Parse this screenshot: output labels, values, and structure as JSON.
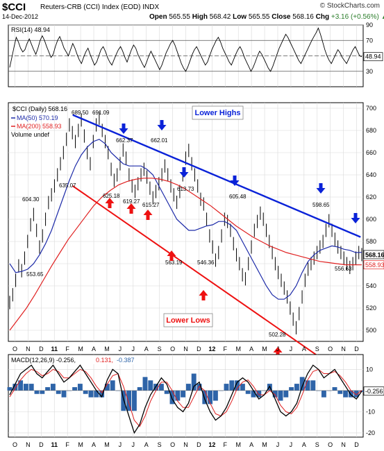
{
  "header": {
    "symbol": "$CCI",
    "name": "Reuters-CRB (CCI) Index (EOD)  INDX",
    "date": "14-Dec-2012",
    "brand": "© StockCharts.com",
    "open_label": "Open",
    "open": "565.55",
    "high_label": "High",
    "high": "568.42",
    "low_label": "Low",
    "low": "565.55",
    "close_label": "Close",
    "close": "568.16",
    "chg_label": "Chg",
    "chg": "+3.16 (+0.56%)",
    "chg_arrow": "▲"
  },
  "colors": {
    "price": "#000000",
    "ma50": "#1c2aa8",
    "ma200": "#e02020",
    "trend_upper": "#0a22d8",
    "trend_lower": "#ee1111",
    "arrow_up": "#ee1111",
    "arrow_down": "#0a22d8",
    "macd_line": "#000000",
    "signal_line": "#e02020",
    "histogram": "#2e64a8",
    "grid": "#d8d8d8"
  },
  "chart_data": [
    {
      "type": "line",
      "title": "RSI(14) 48.94",
      "legend": "RSI(14) 48.94",
      "ylim": [
        10,
        90
      ],
      "y_ticks": [
        30,
        50,
        70,
        90
      ],
      "reference_lines": [
        30,
        50,
        70
      ],
      "last_value": 48.94,
      "series": [
        {
          "values": [
            35,
            48,
            62,
            74,
            68,
            60,
            55,
            58,
            66,
            72,
            65,
            58,
            52,
            60,
            70,
            76,
            70,
            62,
            55,
            48,
            52,
            62,
            70,
            75,
            68,
            60,
            55,
            50,
            58,
            66,
            60,
            52,
            45,
            40,
            48,
            55,
            60,
            52,
            45,
            38,
            42,
            50,
            58,
            62,
            56,
            48,
            42,
            38,
            45,
            52,
            58,
            62,
            56,
            48,
            42,
            50,
            58,
            64,
            60,
            52,
            46,
            40,
            35,
            42,
            50,
            56,
            50,
            44,
            38,
            32,
            38,
            46,
            54,
            60,
            66,
            70,
            64,
            56,
            48,
            40,
            34,
            30,
            36,
            44,
            52,
            58,
            62,
            56,
            50,
            44,
            38,
            42,
            50,
            58,
            64,
            70,
            74,
            68,
            60,
            54,
            48,
            42,
            38,
            45,
            52,
            58,
            62,
            56,
            48,
            42,
            36,
            30,
            35,
            42,
            50,
            56,
            52,
            46,
            40,
            34,
            30,
            36,
            44,
            52,
            60,
            66,
            72,
            78,
            74,
            68,
            62,
            56,
            50,
            44,
            40,
            46,
            52,
            58,
            64,
            70,
            75,
            80,
            86,
            78,
            68,
            58,
            50,
            44,
            40,
            46,
            52,
            58,
            54,
            48,
            44,
            40,
            46,
            52,
            58,
            62,
            56,
            50,
            48.94
          ]
        }
      ]
    },
    {
      "type": "line",
      "title": "$CCI (Daily) 568.16",
      "legend": [
        "$CCI (Daily) 568.16",
        "MA(50) 570.19",
        "MA(200) 558.93",
        "Volume undef"
      ],
      "x_tick_labels": [
        "O",
        "N",
        "D",
        "11",
        "F",
        "M",
        "A",
        "M",
        "J",
        "J",
        "A",
        "S",
        "O",
        "N",
        "D",
        "12",
        "F",
        "M",
        "A",
        "M",
        "J",
        "J",
        "A",
        "S",
        "O",
        "N",
        "D"
      ],
      "ylim": [
        490,
        705
      ],
      "y_ticks": [
        500,
        520,
        540,
        560,
        580,
        600,
        620,
        640,
        660,
        680,
        700
      ],
      "series": [
        {
          "name": "$CCI (Daily)",
          "values": [
            525,
            532,
            545,
            558,
            553.65,
            565,
            580,
            595,
            604.3,
            590,
            575,
            585,
            600,
            615,
            622,
            630,
            640,
            650,
            660,
            672,
            685,
            678,
            670,
            680,
            689.5,
            675,
            660,
            650,
            670,
            685,
            691.09,
            680,
            670,
            660,
            645,
            635.07,
            640,
            650,
            662.37,
            655,
            640,
            630,
            625.18,
            632,
            640,
            645,
            638,
            628,
            619.27,
            625,
            632,
            640,
            648,
            640,
            630,
            622,
            615.27,
            625,
            640,
            655,
            662.01,
            650,
            640,
            630,
            618,
            613.73,
            600,
            585,
            575,
            563.19,
            570,
            585,
            600,
            598,
            590,
            578,
            568,
            560,
            550,
            546.36,
            560,
            575,
            590,
            598,
            605.48,
            600,
            590,
            580,
            570,
            560,
            552,
            545,
            538,
            530,
            520,
            510,
            502.28,
            515,
            530,
            545,
            555,
            560,
            565,
            570,
            575,
            580,
            590,
            598.65,
            590,
            582,
            575,
            570,
            565,
            560,
            556.63,
            560,
            565,
            570,
            568.16
          ]
        },
        {
          "name": "MA(50)",
          "values": [
            560,
            552,
            553,
            555,
            560,
            568,
            578,
            590,
            605,
            620,
            635,
            648,
            658,
            665,
            670,
            672,
            668,
            660,
            655,
            650,
            648,
            648,
            648,
            645,
            640,
            630,
            620,
            610,
            600,
            595,
            590,
            590,
            592,
            594,
            595,
            598,
            598,
            595,
            590,
            580,
            570,
            560,
            550,
            540,
            532,
            528,
            528,
            532,
            540,
            552,
            562,
            568,
            572,
            574,
            576,
            575,
            573,
            572,
            570,
            570.19
          ]
        },
        {
          "name": "MA(200)",
          "values": [
            500,
            510,
            520,
            532,
            545,
            558,
            570,
            582,
            592,
            602,
            612,
            620,
            626,
            631,
            634,
            636,
            637,
            637,
            636,
            634,
            631,
            627,
            622,
            617,
            612,
            606,
            600,
            594,
            589,
            584,
            580,
            576,
            573,
            570,
            568,
            566,
            564,
            562,
            561,
            560,
            559,
            559,
            558.93
          ]
        }
      ],
      "annotations": [
        {
          "text": "Lower Highs"
        },
        {
          "text": "Lower Lows"
        },
        {
          "text": "691.09"
        },
        {
          "text": "689.50"
        },
        {
          "text": "662.37"
        },
        {
          "text": "662.01"
        },
        {
          "text": "635.07"
        },
        {
          "text": "625.18"
        },
        {
          "text": "619.27"
        },
        {
          "text": "615.27"
        },
        {
          "text": "613.73"
        },
        {
          "text": "605.48"
        },
        {
          "text": "604.30"
        },
        {
          "text": "598.65"
        },
        {
          "text": "563.19"
        },
        {
          "text": "556.63"
        },
        {
          "text": "553.65"
        },
        {
          "text": "546.36"
        },
        {
          "text": "502.28"
        }
      ],
      "trend_lines": [
        {
          "name": "Lower Highs",
          "from": [
            4.9,
            694
          ],
          "to": [
            26.8,
            584
          ]
        },
        {
          "name": "Lower Lows",
          "from": [
            4.9,
            630
          ],
          "to": [
            26.8,
            470
          ]
        }
      ],
      "last_close_label": "568.16",
      "last_ma200_label": "558.93"
    },
    {
      "type": "line",
      "title": "MACD(12,26,9) -0.256, 0.131, -0.387",
      "legend": [
        "MACD(12,26,9) -0.256,",
        "0.131,",
        "-0.387"
      ],
      "ylim": [
        -22,
        17
      ],
      "y_ticks": [
        -20,
        -10,
        0,
        10
      ],
      "x_tick_labels": [
        "O",
        "N",
        "D",
        "11",
        "F",
        "M",
        "A",
        "M",
        "J",
        "J",
        "A",
        "S",
        "O",
        "N",
        "D",
        "12",
        "F",
        "M",
        "A",
        "M",
        "J",
        "J",
        "A",
        "S",
        "O",
        "N",
        "D"
      ],
      "last_value_label": "-0.256",
      "series": [
        {
          "name": "MACD",
          "values": [
            -2,
            3,
            8,
            10,
            12,
            8,
            6,
            9,
            12,
            8,
            4,
            6,
            9,
            12,
            8,
            4,
            0,
            -3,
            5,
            10,
            8,
            -4,
            -12,
            -20,
            -16,
            -8,
            -2,
            2,
            6,
            3,
            -4,
            -8,
            -10,
            -6,
            2,
            4,
            -4,
            -10,
            -14,
            -12,
            -8,
            -2,
            4,
            6,
            4,
            0,
            -4,
            -2,
            2,
            -4,
            -10,
            -12,
            -10,
            -6,
            2,
            8,
            12,
            10,
            6,
            8,
            10,
            6,
            2,
            -2,
            -4,
            -0.256
          ]
        },
        {
          "name": "Signal",
          "values": [
            -3,
            1,
            5,
            8,
            10,
            9,
            7,
            8,
            10,
            9,
            6,
            6,
            8,
            10,
            9,
            6,
            2,
            -1,
            3,
            7,
            8,
            2,
            -6,
            -14,
            -17,
            -12,
            -5,
            0,
            4,
            4,
            0,
            -5,
            -8,
            -8,
            -3,
            2,
            0,
            -6,
            -11,
            -12,
            -10,
            -5,
            1,
            4,
            5,
            2,
            -2,
            -2,
            0,
            -2,
            -7,
            -10,
            -11,
            -8,
            -2,
            5,
            9,
            10,
            8,
            8,
            9,
            7,
            4,
            0,
            -2,
            0.131
          ]
        }
      ]
    }
  ]
}
